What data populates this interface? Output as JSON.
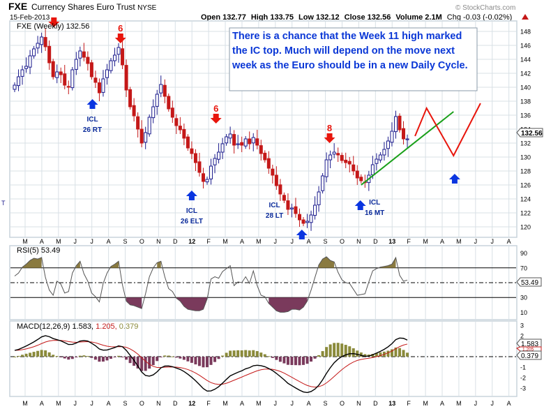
{
  "header": {
    "symbol": "FXE",
    "name": "Currency Shares Euro Trust",
    "exchange": "NYSE",
    "date": "15-Feb-2013",
    "open": "Open 132.77",
    "high": "High 133.75",
    "low": "Low 132.12",
    "close": "Close 132.56",
    "volume": "Volume 2.1M",
    "chg": "Chg -0.03 (-0.02%)",
    "watermark": "© StockCharts.com"
  },
  "price_panel": {
    "legend": "FXE (Weekly) 132.56",
    "last_price_tag": "132.56",
    "left_edge_mark": "T",
    "note": "There is a chance that the Week 11 high marked the IC top.  Much will depend on the move next week as the Euro should be in a new Daily Cycle.",
    "annotations": [
      {
        "label": "6",
        "color": "red"
      },
      {
        "label": "6",
        "color": "red"
      },
      {
        "label": "8",
        "color": "red"
      },
      {
        "label": "ICL",
        "sub": "26 RT"
      },
      {
        "label": "ICL",
        "sub": "26 ELT"
      },
      {
        "label": "ICL",
        "sub": "28 LT"
      },
      {
        "label": "ICL",
        "sub": "16 MT"
      }
    ]
  },
  "rsi_panel": {
    "legend": "RSI(5) 53.49",
    "value_tag": "53.49"
  },
  "macd_panel": {
    "legend_name": "MACD(12,26,9)",
    "legend_macd": "1.583,",
    "legend_signal": "1.205,",
    "legend_hist": "0.379",
    "tag_macd": "1.583",
    "tag_signal": "1.205",
    "tag_hist": "0.379"
  },
  "x_axis_labels": [
    "M",
    "A",
    "M",
    "J",
    "J",
    "A",
    "S",
    "O",
    "N",
    "D",
    "12",
    "F",
    "M",
    "A",
    "M",
    "J",
    "J",
    "A",
    "S",
    "O",
    "N",
    "D",
    "13",
    "F",
    "M",
    "A",
    "M",
    "J",
    "J",
    "A"
  ],
  "colors": {
    "up": "#1a1a8c",
    "down": "#c41818",
    "arrow_red": "#e8150c",
    "arrow_blue": "#0a35e0",
    "note_text": "#0a37d6",
    "trendline": "#1aa01a",
    "projection": "#e8150c",
    "rsi_fill": "#8a7a40",
    "rsi_fill_low": "#7a3a5c",
    "hist_pos": "#8a8a3a",
    "hist_neg": "#7a3a5c",
    "frame": "#c8d4dc"
  },
  "chart_data": [
    {
      "type": "candlestick",
      "title": "FXE (Weekly) 132.56",
      "x_start": "2011-03-07",
      "y_ticks": [
        120,
        122,
        124,
        126,
        128,
        130,
        132,
        134,
        136,
        138,
        140,
        142,
        144,
        146,
        148
      ],
      "ylim": [
        118.5,
        149.5
      ],
      "closes": [
        140.3,
        141.5,
        142.5,
        143.0,
        144.5,
        145.5,
        146.3,
        147.2,
        145.8,
        143.5,
        141.5,
        142.2,
        141.8,
        140.3,
        140.0,
        142.5,
        144.0,
        145.2,
        144.3,
        143.4,
        141.5,
        140.7,
        139.2,
        141.2,
        142.5,
        143.8,
        144.6,
        145.7,
        143.2,
        139.6,
        137.2,
        135.9,
        134.0,
        132.0,
        133.5,
        135.7,
        137.2,
        139.0,
        140.4,
        138.7,
        136.9,
        135.7,
        134.5,
        133.9,
        132.7,
        131.3,
        130.5,
        129.2,
        127.8,
        126.5,
        126.8,
        128.7,
        129.8,
        130.7,
        131.9,
        132.9,
        133.3,
        131.7,
        131.9,
        131.7,
        132.6,
        131.9,
        132.8,
        131.7,
        130.5,
        129.6,
        128.4,
        127.4,
        125.9,
        124.7,
        123.8,
        122.5,
        122.7,
        121.9,
        121.0,
        120.5,
        120.8,
        121.7,
        123.1,
        125.0,
        127.3,
        129.6,
        130.3,
        130.7,
        130.3,
        129.5,
        129.2,
        129.0,
        128.0,
        127.0,
        126.6,
        126.4,
        127.4,
        128.9,
        129.7,
        130.3,
        131.1,
        132.3,
        133.7,
        135.8,
        133.9,
        132.6,
        132.6
      ],
      "annotated_values": {
        "week11_high": 135.8,
        "last_close": 132.56
      }
    },
    {
      "type": "line",
      "title": "RSI(5) 53.49",
      "y_ticks": [
        10,
        30,
        50,
        70,
        90
      ],
      "ylim": [
        0,
        100
      ],
      "reference_lines": [
        30,
        50,
        70
      ],
      "values": [
        59,
        63,
        71,
        75,
        80,
        83,
        82,
        84,
        57,
        40,
        33,
        52,
        48,
        36,
        38,
        63,
        73,
        79,
        62,
        52,
        36,
        31,
        24,
        49,
        63,
        72,
        75,
        79,
        47,
        25,
        20,
        19,
        17,
        15,
        35,
        58,
        70,
        77,
        79,
        58,
        42,
        38,
        29,
        25,
        18,
        14,
        13,
        12,
        12,
        14,
        28,
        55,
        58,
        56,
        65,
        69,
        73,
        46,
        51,
        50,
        58,
        49,
        66,
        46,
        33,
        31,
        22,
        17,
        12,
        10,
        10,
        11,
        14,
        14,
        13,
        17,
        25,
        40,
        57,
        74,
        82,
        85,
        80,
        78,
        64,
        54,
        50,
        49,
        41,
        33,
        34,
        35,
        51,
        66,
        69,
        71,
        72,
        73,
        75,
        84,
        60,
        52,
        53.49
      ],
      "last": 53.49
    },
    {
      "type": "line",
      "title": "MACD(12,26,9)",
      "y_ticks": [
        -3,
        -2,
        -1,
        0,
        1,
        2,
        3
      ],
      "ylim": [
        -3.8,
        3.4
      ],
      "series": [
        {
          "name": "MACD",
          "values": [
            0.6,
            0.69,
            0.85,
            1.02,
            1.21,
            1.41,
            1.64,
            1.89,
            2.0,
            1.91,
            1.73,
            1.62,
            1.51,
            1.34,
            1.16,
            1.17,
            1.3,
            1.49,
            1.54,
            1.49,
            1.28,
            1.04,
            0.73,
            0.62,
            0.64,
            0.75,
            0.87,
            1.03,
            0.95,
            0.6,
            0.13,
            -0.35,
            -0.89,
            -1.47,
            -1.8,
            -1.86,
            -1.74,
            -1.45,
            -1.07,
            -0.9,
            -0.89,
            -0.96,
            -1.09,
            -1.22,
            -1.42,
            -1.68,
            -1.97,
            -2.3,
            -2.67,
            -3.05,
            -3.29,
            -3.27,
            -3.11,
            -2.87,
            -2.53,
            -2.17,
            -1.83,
            -1.66,
            -1.49,
            -1.35,
            -1.16,
            -1.05,
            -0.87,
            -0.82,
            -0.86,
            -0.96,
            -1.13,
            -1.33,
            -1.6,
            -1.9,
            -2.21,
            -2.55,
            -2.77,
            -2.99,
            -3.2,
            -3.37,
            -3.43,
            -3.33,
            -3.1,
            -2.73,
            -2.21,
            -1.59,
            -1.05,
            -0.58,
            -0.24,
            0.01,
            0.17,
            0.28,
            0.29,
            0.22,
            0.13,
            0.04,
            0.05,
            0.18,
            0.34,
            0.51,
            0.7,
            0.94,
            1.24,
            1.63,
            1.78,
            1.75,
            1.583
          ]
        },
        {
          "name": "Signal",
          "values": [
            0.6,
            0.62,
            0.67,
            0.74,
            0.84,
            0.95,
            1.09,
            1.25,
            1.4,
            1.5,
            1.55,
            1.56,
            1.55,
            1.51,
            1.44,
            1.39,
            1.37,
            1.4,
            1.42,
            1.43,
            1.4,
            1.33,
            1.21,
            1.09,
            1.0,
            0.95,
            0.94,
            0.95,
            0.96,
            0.89,
            0.74,
            0.52,
            0.24,
            -0.1,
            -0.44,
            -0.72,
            -0.93,
            -1.03,
            -1.03,
            -1.01,
            -0.99,
            -0.98,
            -1.0,
            -1.04,
            -1.12,
            -1.23,
            -1.38,
            -1.56,
            -1.78,
            -2.03,
            -2.28,
            -2.48,
            -2.6,
            -2.65,
            -2.63,
            -2.54,
            -2.4,
            -2.25,
            -2.1,
            -1.95,
            -1.79,
            -1.64,
            -1.49,
            -1.35,
            -1.25,
            -1.19,
            -1.18,
            -1.21,
            -1.29,
            -1.41,
            -1.57,
            -1.77,
            -1.97,
            -2.18,
            -2.38,
            -2.58,
            -2.75,
            -2.86,
            -2.91,
            -2.87,
            -2.74,
            -2.51,
            -2.22,
            -1.89,
            -1.56,
            -1.24,
            -0.96,
            -0.71,
            -0.51,
            -0.36,
            -0.27,
            -0.2,
            -0.15,
            -0.08,
            0.0,
            0.1,
            0.22,
            0.37,
            0.54,
            0.76,
            0.96,
            1.11,
            1.205
          ]
        },
        {
          "name": "Histogram",
          "values": [
            0.0,
            0.07,
            0.18,
            0.28,
            0.37,
            0.46,
            0.55,
            0.64,
            0.6,
            0.41,
            0.18,
            0.06,
            -0.04,
            -0.17,
            -0.28,
            -0.22,
            -0.07,
            0.09,
            0.12,
            0.06,
            -0.12,
            -0.29,
            -0.48,
            -0.47,
            -0.36,
            -0.2,
            -0.07,
            0.08,
            -0.01,
            -0.29,
            -0.61,
            -0.87,
            -1.13,
            -1.37,
            -1.36,
            -1.14,
            -0.81,
            -0.42,
            -0.04,
            0.11,
            0.1,
            0.02,
            -0.09,
            -0.18,
            -0.3,
            -0.45,
            -0.59,
            -0.74,
            -0.89,
            -1.02,
            -1.01,
            -0.79,
            -0.51,
            -0.22,
            0.1,
            0.37,
            0.57,
            0.59,
            0.61,
            0.6,
            0.63,
            0.59,
            0.62,
            0.53,
            0.39,
            0.23,
            0.05,
            -0.12,
            -0.31,
            -0.49,
            -0.64,
            -0.78,
            -0.8,
            -0.81,
            -0.82,
            -0.79,
            -0.68,
            -0.47,
            -0.19,
            0.14,
            0.53,
            0.92,
            1.17,
            1.31,
            1.32,
            1.25,
            1.13,
            0.99,
            0.8,
            0.58,
            0.4,
            0.24,
            0.2,
            0.26,
            0.34,
            0.41,
            0.48,
            0.57,
            0.7,
            0.87,
            0.82,
            0.64,
            0.379
          ]
        }
      ]
    }
  ]
}
